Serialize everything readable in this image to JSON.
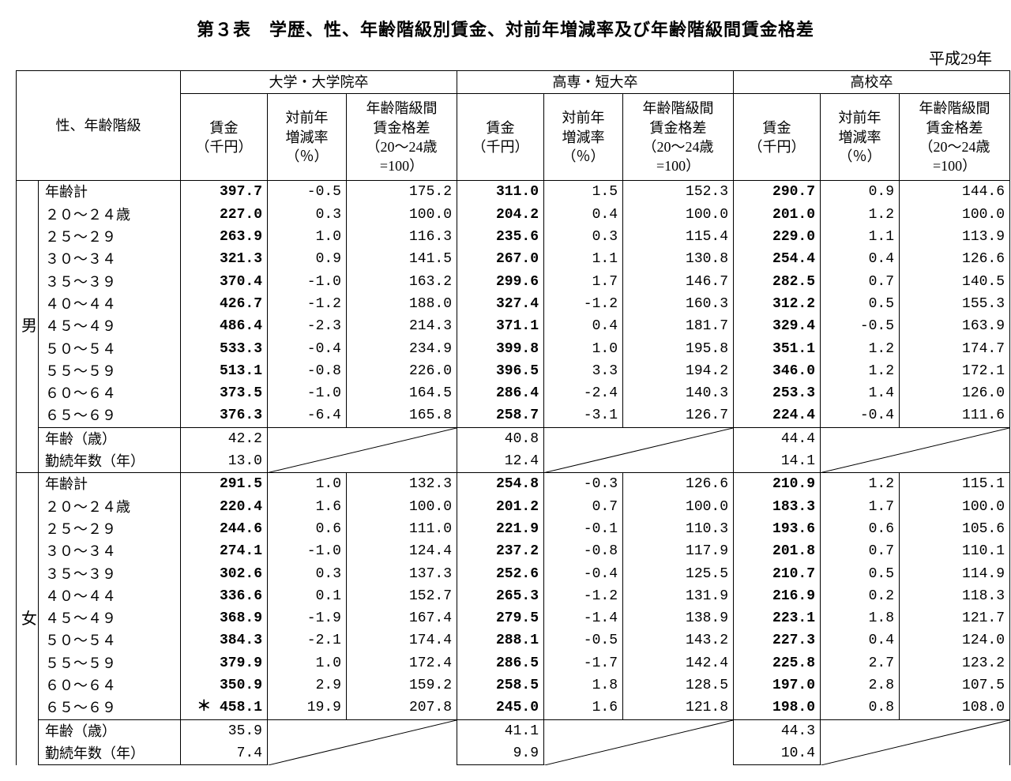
{
  "title": "第３表　学歴、性、年齢階級別賃金、対前年増減率及び年齢階級間賃金格差",
  "year": "平成29年",
  "rowhead": "性、年齢階級",
  "groups": [
    "大学・大学院卒",
    "高専・短大卒",
    "高校卒"
  ],
  "subheads": {
    "wage": "賃金\n（千円）",
    "rate": "対前年\n増減率\n（％）",
    "gap": "年齢階級間\n賃金格差\n（20～24歳\n=100）"
  },
  "age_labels": [
    "年齢計",
    "２０～２４歳",
    "２５～２９",
    "３０～３４",
    "３５～３９",
    "４０～４４",
    "４５～４９",
    "５０～５４",
    "５５～５９",
    "６０～６４",
    "６５～６９"
  ],
  "summary_labels": [
    "年齢（歳）",
    "勤続年数（年）"
  ],
  "sex_labels": {
    "m": "男",
    "f": "女"
  },
  "asterisk": "＊",
  "male": {
    "rows": [
      [
        "397.7",
        "-0.5",
        "175.2",
        "311.0",
        "1.5",
        "152.3",
        "290.7",
        "0.9",
        "144.6"
      ],
      [
        "227.0",
        "0.3",
        "100.0",
        "204.2",
        "0.4",
        "100.0",
        "201.0",
        "1.2",
        "100.0"
      ],
      [
        "263.9",
        "1.0",
        "116.3",
        "235.6",
        "0.3",
        "115.4",
        "229.0",
        "1.1",
        "113.9"
      ],
      [
        "321.3",
        "0.9",
        "141.5",
        "267.0",
        "1.1",
        "130.8",
        "254.4",
        "0.4",
        "126.6"
      ],
      [
        "370.4",
        "-1.0",
        "163.2",
        "299.6",
        "1.7",
        "146.7",
        "282.5",
        "0.7",
        "140.5"
      ],
      [
        "426.7",
        "-1.2",
        "188.0",
        "327.4",
        "-1.2",
        "160.3",
        "312.2",
        "0.5",
        "155.3"
      ],
      [
        "486.4",
        "-2.3",
        "214.3",
        "371.1",
        "0.4",
        "181.7",
        "329.4",
        "-0.5",
        "163.9"
      ],
      [
        "533.3",
        "-0.4",
        "234.9",
        "399.8",
        "1.0",
        "195.8",
        "351.1",
        "1.2",
        "174.7"
      ],
      [
        "513.1",
        "-0.8",
        "226.0",
        "396.5",
        "3.3",
        "194.2",
        "346.0",
        "1.2",
        "172.1"
      ],
      [
        "373.5",
        "-1.0",
        "164.5",
        "286.4",
        "-2.4",
        "140.3",
        "253.3",
        "1.4",
        "126.0"
      ],
      [
        "376.3",
        "-6.4",
        "165.8",
        "258.7",
        "-3.1",
        "126.7",
        "224.4",
        "-0.4",
        "111.6"
      ]
    ],
    "summary": [
      [
        "42.2",
        "40.8",
        "44.4"
      ],
      [
        "13.0",
        "12.4",
        "14.1"
      ]
    ]
  },
  "female": {
    "rows": [
      [
        "291.5",
        "1.0",
        "132.3",
        "254.8",
        "-0.3",
        "126.6",
        "210.9",
        "1.2",
        "115.1"
      ],
      [
        "220.4",
        "1.6",
        "100.0",
        "201.2",
        "0.7",
        "100.0",
        "183.3",
        "1.7",
        "100.0"
      ],
      [
        "244.6",
        "0.6",
        "111.0",
        "221.9",
        "-0.1",
        "110.3",
        "193.6",
        "0.6",
        "105.6"
      ],
      [
        "274.1",
        "-1.0",
        "124.4",
        "237.2",
        "-0.8",
        "117.9",
        "201.8",
        "0.7",
        "110.1"
      ],
      [
        "302.6",
        "0.3",
        "137.3",
        "252.6",
        "-0.4",
        "125.5",
        "210.7",
        "0.5",
        "114.9"
      ],
      [
        "336.6",
        "0.1",
        "152.7",
        "265.3",
        "-1.2",
        "131.9",
        "216.9",
        "0.2",
        "118.3"
      ],
      [
        "368.9",
        "-1.9",
        "167.4",
        "279.5",
        "-1.4",
        "138.9",
        "223.1",
        "1.8",
        "121.7"
      ],
      [
        "384.3",
        "-2.1",
        "174.4",
        "288.1",
        "-0.5",
        "143.2",
        "227.3",
        "0.4",
        "124.0"
      ],
      [
        "379.9",
        "1.0",
        "172.4",
        "286.5",
        "-1.7",
        "142.4",
        "225.8",
        "2.7",
        "123.2"
      ],
      [
        "350.9",
        "2.9",
        "159.2",
        "258.5",
        "1.8",
        "128.5",
        "197.0",
        "2.8",
        "107.5"
      ],
      [
        "458.1",
        "19.9",
        "207.8",
        "245.0",
        "1.6",
        "121.8",
        "198.0",
        "0.8",
        "108.0"
      ]
    ],
    "asterisk_row": 10,
    "summary": [
      [
        "35.9",
        "41.1",
        "44.3"
      ],
      [
        "7.4",
        "9.9",
        "10.4"
      ]
    ]
  },
  "style": {
    "border_color": "#000000",
    "background": "#ffffff",
    "text_color": "#000000",
    "title_fontsize": 22,
    "cell_fontsize": 18,
    "bold_cols": [
      0,
      3,
      6
    ]
  }
}
